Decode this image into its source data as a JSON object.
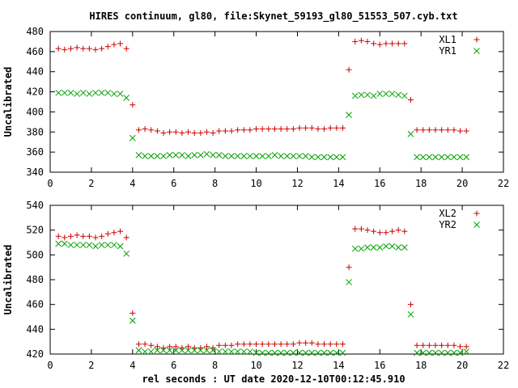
{
  "title": "HIRES continuum, gl80, file:Skynet_59193_gl80_51553_507.cyb.txt",
  "xlabel": "rel seconds : UT date 2020-12-10T00:12:45.910",
  "colors": {
    "plus": "#cc0000",
    "cross": "#00a000",
    "axis": "#000000",
    "grid": "#888888"
  },
  "chart_data": [
    {
      "type": "scatter",
      "ylabel": "Uncalibrated",
      "xlim": [
        0,
        22
      ],
      "ylim": [
        340,
        480
      ],
      "xticks": [
        0,
        2,
        4,
        6,
        8,
        10,
        12,
        14,
        16,
        18,
        20,
        22
      ],
      "yticks": [
        340,
        360,
        380,
        400,
        420,
        440,
        460,
        480
      ],
      "legend_position": "top-right",
      "series": [
        {
          "name": "XL1",
          "marker": "plus",
          "x": [
            0.4,
            0.7,
            1.0,
            1.3,
            1.6,
            1.9,
            2.2,
            2.5,
            2.8,
            3.1,
            3.4,
            3.7,
            4.0,
            4.3,
            4.6,
            4.9,
            5.2,
            5.5,
            5.8,
            6.1,
            6.4,
            6.7,
            7.0,
            7.3,
            7.6,
            7.9,
            8.2,
            8.5,
            8.8,
            9.1,
            9.4,
            9.7,
            10.0,
            10.3,
            10.6,
            10.9,
            11.2,
            11.5,
            11.8,
            12.1,
            12.4,
            12.7,
            13.0,
            13.3,
            13.6,
            13.9,
            14.2,
            14.5,
            14.8,
            15.1,
            15.4,
            15.7,
            16.0,
            16.3,
            16.6,
            16.9,
            17.2,
            17.5,
            17.8,
            18.1,
            18.4,
            18.7,
            19.0,
            19.3,
            19.6,
            19.9,
            20.2
          ],
          "y": [
            463,
            462,
            463,
            464,
            463,
            463,
            462,
            463,
            465,
            467,
            468,
            463,
            407,
            382,
            383,
            382,
            381,
            379,
            380,
            380,
            379,
            380,
            379,
            379,
            380,
            379,
            381,
            381,
            381,
            382,
            382,
            382,
            383,
            383,
            383,
            383,
            383,
            383,
            383,
            384,
            384,
            384,
            383,
            383,
            384,
            384,
            384,
            442,
            470,
            471,
            470,
            468,
            467,
            468,
            468,
            468,
            468,
            412,
            382,
            382,
            382,
            382,
            382,
            382,
            382,
            381,
            381
          ]
        },
        {
          "name": "YR1",
          "marker": "cross",
          "x": [
            0.4,
            0.7,
            1.0,
            1.3,
            1.6,
            1.9,
            2.2,
            2.5,
            2.8,
            3.1,
            3.4,
            3.7,
            4.0,
            4.3,
            4.6,
            4.9,
            5.2,
            5.5,
            5.8,
            6.1,
            6.4,
            6.7,
            7.0,
            7.3,
            7.6,
            7.9,
            8.2,
            8.5,
            8.8,
            9.1,
            9.4,
            9.7,
            10.0,
            10.3,
            10.6,
            10.9,
            11.2,
            11.5,
            11.8,
            12.1,
            12.4,
            12.7,
            13.0,
            13.3,
            13.6,
            13.9,
            14.2,
            14.5,
            14.8,
            15.1,
            15.4,
            15.7,
            16.0,
            16.3,
            16.6,
            16.9,
            17.2,
            17.5,
            17.8,
            18.1,
            18.4,
            18.7,
            19.0,
            19.3,
            19.6,
            19.9,
            20.2
          ],
          "y": [
            419,
            419,
            419,
            418,
            419,
            418,
            419,
            419,
            419,
            418,
            418,
            414,
            374,
            357,
            356,
            356,
            356,
            356,
            357,
            357,
            357,
            356,
            357,
            357,
            358,
            357,
            357,
            356,
            356,
            356,
            356,
            356,
            356,
            356,
            356,
            357,
            356,
            356,
            356,
            356,
            356,
            355,
            355,
            355,
            355,
            355,
            355,
            397,
            416,
            417,
            417,
            416,
            418,
            418,
            418,
            417,
            416,
            378,
            355,
            355,
            355,
            355,
            355,
            355,
            355,
            355,
            355
          ]
        }
      ]
    },
    {
      "type": "scatter",
      "ylabel": "Uncalibrated",
      "xlim": [
        0,
        22
      ],
      "ylim": [
        420,
        540
      ],
      "xticks": [
        0,
        2,
        4,
        6,
        8,
        10,
        12,
        14,
        16,
        18,
        20,
        22
      ],
      "yticks": [
        420,
        440,
        460,
        480,
        500,
        520,
        540
      ],
      "legend_position": "top-right",
      "series": [
        {
          "name": "XL2",
          "marker": "plus",
          "x": [
            0.4,
            0.7,
            1.0,
            1.3,
            1.6,
            1.9,
            2.2,
            2.5,
            2.8,
            3.1,
            3.4,
            3.7,
            4.0,
            4.3,
            4.6,
            4.9,
            5.2,
            5.5,
            5.8,
            6.1,
            6.4,
            6.7,
            7.0,
            7.3,
            7.6,
            7.9,
            8.2,
            8.5,
            8.8,
            9.1,
            9.4,
            9.7,
            10.0,
            10.3,
            10.6,
            10.9,
            11.2,
            11.5,
            11.8,
            12.1,
            12.4,
            12.7,
            13.0,
            13.3,
            13.6,
            13.9,
            14.2,
            14.5,
            14.8,
            15.1,
            15.4,
            15.7,
            16.0,
            16.3,
            16.6,
            16.9,
            17.2,
            17.5,
            17.8,
            18.1,
            18.4,
            18.7,
            19.0,
            19.3,
            19.6,
            19.9,
            20.2
          ],
          "y": [
            515,
            514,
            515,
            516,
            515,
            515,
            514,
            515,
            517,
            518,
            519,
            514,
            453,
            428,
            428,
            427,
            426,
            425,
            426,
            426,
            425,
            426,
            425,
            425,
            426,
            425,
            427,
            427,
            427,
            428,
            428,
            428,
            428,
            428,
            428,
            428,
            428,
            428,
            428,
            429,
            429,
            429,
            428,
            428,
            428,
            428,
            428,
            490,
            521,
            521,
            520,
            519,
            518,
            518,
            519,
            520,
            519,
            460,
            427,
            427,
            427,
            427,
            427,
            427,
            427,
            426,
            426
          ]
        },
        {
          "name": "YR2",
          "marker": "cross",
          "x": [
            0.4,
            0.7,
            1.0,
            1.3,
            1.6,
            1.9,
            2.2,
            2.5,
            2.8,
            3.1,
            3.4,
            3.7,
            4.0,
            4.3,
            4.6,
            4.9,
            5.2,
            5.5,
            5.8,
            6.1,
            6.4,
            6.7,
            7.0,
            7.3,
            7.6,
            7.9,
            8.2,
            8.5,
            8.8,
            9.1,
            9.4,
            9.7,
            10.0,
            10.3,
            10.6,
            10.9,
            11.2,
            11.5,
            11.8,
            12.1,
            12.4,
            12.7,
            13.0,
            13.3,
            13.6,
            13.9,
            14.2,
            14.5,
            14.8,
            15.1,
            15.4,
            15.7,
            16.0,
            16.3,
            16.6,
            16.9,
            17.2,
            17.5,
            17.8,
            18.1,
            18.4,
            18.7,
            19.0,
            19.3,
            19.6,
            19.9,
            20.2
          ],
          "y": [
            509,
            509,
            508,
            508,
            508,
            508,
            507,
            508,
            508,
            508,
            507,
            501,
            447,
            423,
            422,
            422,
            423,
            423,
            423,
            423,
            423,
            423,
            423,
            423,
            423,
            423,
            422,
            422,
            422,
            422,
            422,
            422,
            421,
            421,
            421,
            421,
            421,
            421,
            421,
            421,
            421,
            421,
            421,
            421,
            421,
            421,
            421,
            478,
            505,
            505,
            506,
            506,
            506,
            507,
            507,
            506,
            506,
            452,
            421,
            421,
            421,
            421,
            421,
            421,
            421,
            421,
            422
          ]
        }
      ]
    }
  ]
}
